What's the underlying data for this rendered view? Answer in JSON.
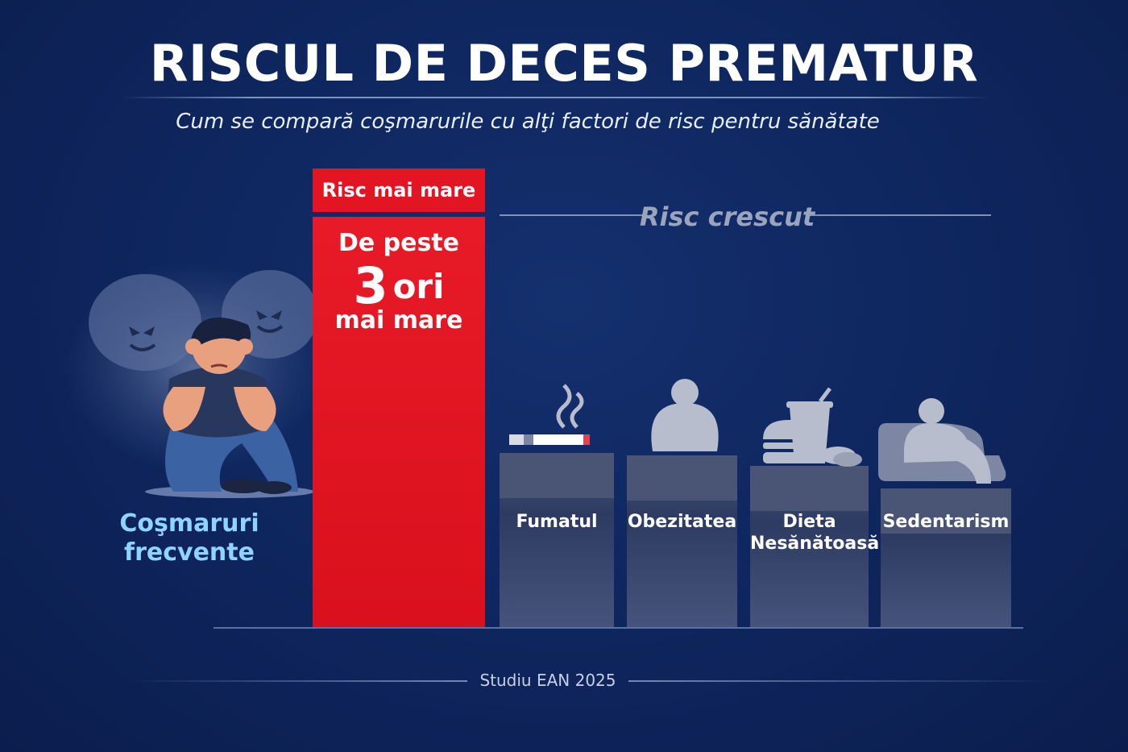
{
  "header": {
    "title": "RISCUL DE DECES PREMATUR",
    "subtitle": "Cum se compară coşmarurile cu alţi factori de risc pentru sănătate"
  },
  "highlight": {
    "label_lines": [
      "Coşmaruri",
      "frecvente"
    ],
    "badge": "Risc mai mare",
    "line1": "De peste",
    "number": "3",
    "unit": "ori",
    "line3": "mai mare",
    "color": "#e41523",
    "label_color": "#8fd3ff"
  },
  "reference_label": "Risc crescut",
  "source": "Studiu EAN 2025",
  "chart_data": {
    "type": "bar",
    "categories": [
      "Coşmaruri frecvente",
      "Fumatul",
      "Obezitatea",
      "Dieta Nesănătoasă",
      "Sedentarism"
    ],
    "category_lines": [
      [
        "Coşmaruri",
        "frecvente"
      ],
      [
        "Fumatul"
      ],
      [
        "Obezitatea"
      ],
      [
        "Dieta",
        "Nesănătoasă"
      ],
      [
        "Sedentarism"
      ]
    ],
    "values": [
      3,
      1,
      1,
      1,
      1
    ],
    "value_labels": [
      "De peste 3 ori mai mare",
      "",
      "",
      "",
      ""
    ],
    "colors": [
      "#e41523",
      "#3f4a6b",
      "#3f4a6b",
      "#3f4a6b",
      "#3f4a6b"
    ],
    "icons": [
      "nightmare-figure-icon",
      "cigarette-icon",
      "obese-person-icon",
      "junk-food-icon",
      "person-on-couch-icon"
    ],
    "title": "RISCUL DE DECES PREMATUR",
    "xlabel": "",
    "ylabel": "",
    "grid": false,
    "legend": "none"
  }
}
